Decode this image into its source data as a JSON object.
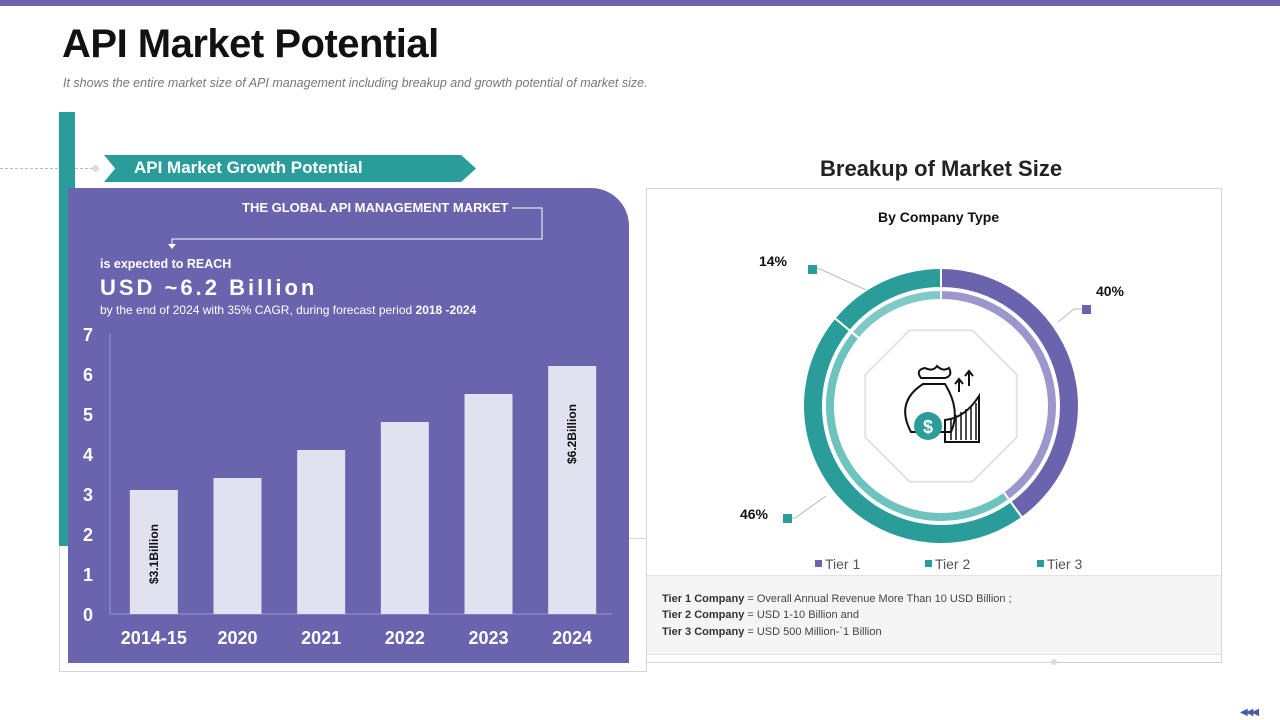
{
  "page": {
    "title": "API Market Potential",
    "subtitle": "It shows the entire market size of API management  including breakup and growth  potential  of market size."
  },
  "left_panel": {
    "banner": "API Market Growth Potential",
    "global_label": "THE GLOBAL API MANAGEMENT MARKET",
    "reach_label": "is expected to REACH",
    "headline_value": "USD ~6.2 Billion",
    "desc_prefix": "by the end of 2024 with 35% CAGR, during forecast period ",
    "desc_period": "2018 -2024"
  },
  "right_panel": {
    "title": "Breakup of Market Size",
    "chart_title": "By Company Type",
    "notes": [
      {
        "label": "Tier 1 Company",
        "text": " = Overall  Annual Revenue More Than 10 USD Billion  ;"
      },
      {
        "label": "Tier 2 Company",
        "text": " = USD 1-10  Billion  and"
      },
      {
        "label": "Tier 3 Company",
        "text": " = USD 500 Million-`1 Billion"
      }
    ]
  },
  "icons": {
    "center": "money-bag-growth-icon",
    "nav": "triple-chevron-left-icon"
  },
  "colors": {
    "purple": "#6a63ad",
    "teal": "#2a9d9a",
    "bar": "#e2e1ef",
    "tier1": "#6a63ad",
    "tier2": "#2a9d9a",
    "tier3": "#2a9d9a"
  },
  "chart_data": [
    {
      "type": "bar",
      "title": "",
      "categories": [
        "2014-15",
        "2020",
        "2021",
        "2022",
        "2023",
        "2024"
      ],
      "values": [
        3.1,
        3.4,
        4.1,
        4.8,
        5.5,
        6.2
      ],
      "ylim": [
        0,
        7
      ],
      "yticks": [
        0,
        1,
        2,
        3,
        4,
        5,
        6,
        7
      ],
      "xlabel": "",
      "ylabel": "",
      "data_labels": [
        {
          "category": "2014-15",
          "text": "$3.1Billion"
        },
        {
          "category": "2024",
          "text": "$6.2Billion"
        }
      ]
    },
    {
      "type": "pie",
      "title": "By Company Type",
      "categories": [
        "Tier 1",
        "Tier 2",
        "Tier 3"
      ],
      "values": [
        40,
        46,
        14
      ],
      "labels": [
        "40%",
        "46%",
        "14%"
      ],
      "legend": "bottom"
    }
  ]
}
